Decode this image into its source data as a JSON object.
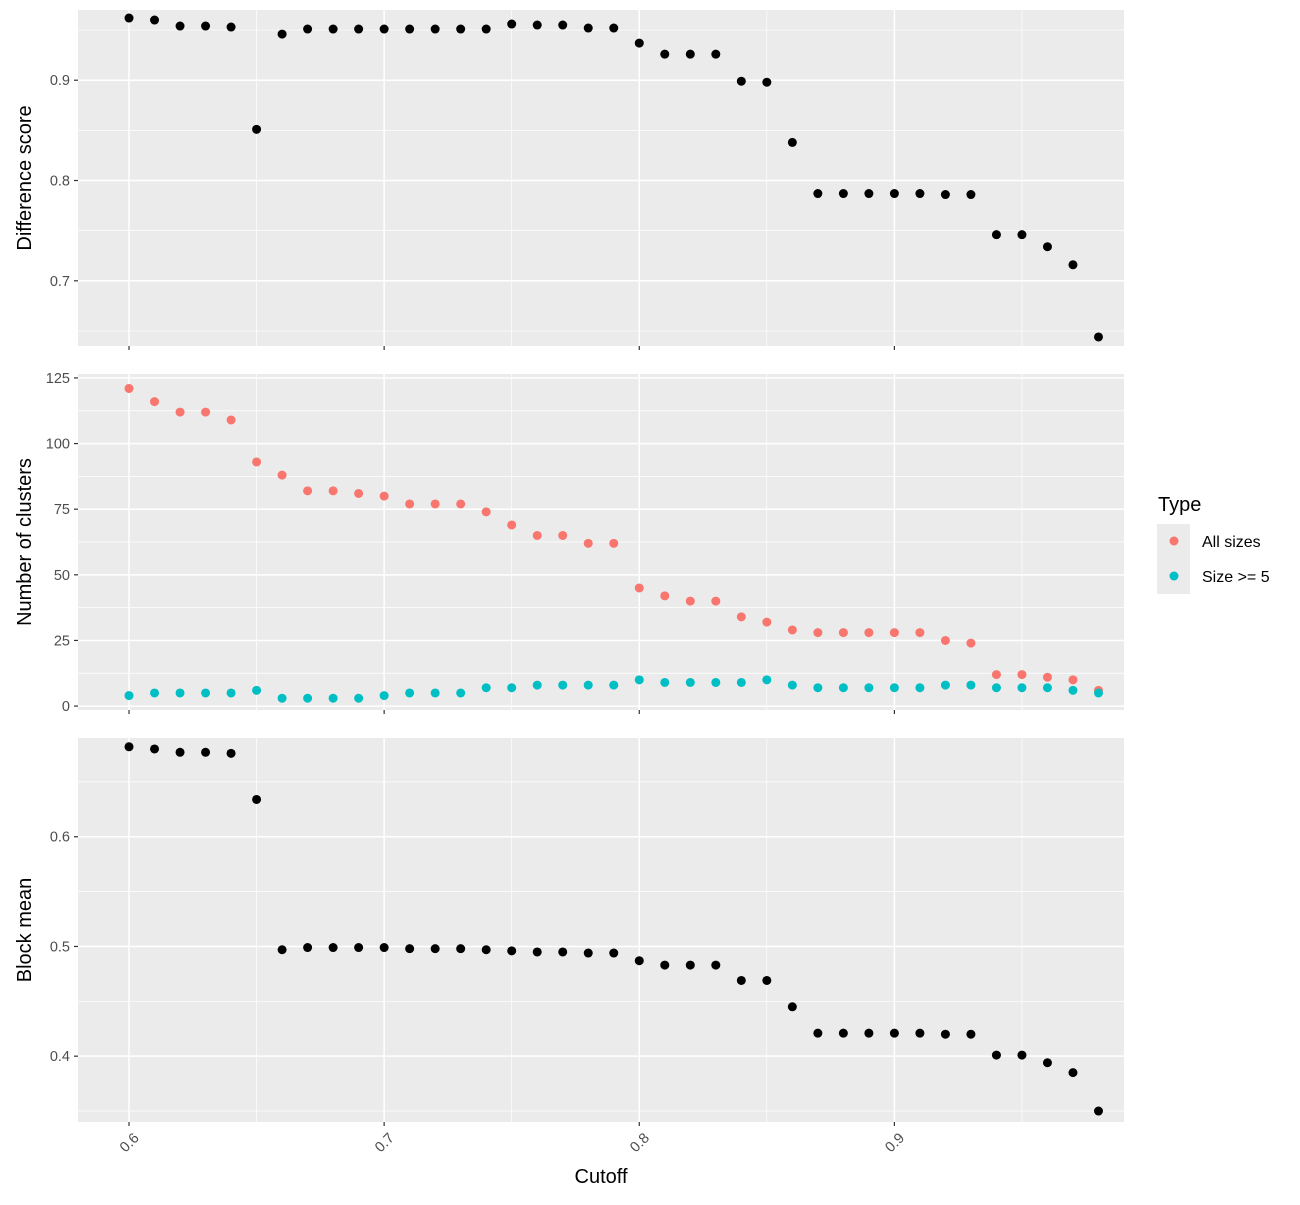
{
  "legend": {
    "title": "Type",
    "entries": [
      {
        "label": "All sizes",
        "color": "#F8766D"
      },
      {
        "label": "Size >= 5",
        "color": "#00BFC4"
      }
    ]
  },
  "chart_data": [
    {
      "type": "scatter",
      "xlabel": "",
      "ylabel": "Difference score",
      "xlim": [
        0.58,
        0.99
      ],
      "ylim": [
        0.635,
        0.97
      ],
      "x_ticks": [
        0.6,
        0.7,
        0.8,
        0.9
      ],
      "x_tick_labels": [],
      "y_ticks": [
        0.7,
        0.8,
        0.9
      ],
      "y_tick_labels": [
        "0.7",
        "0.8",
        "0.9"
      ],
      "grid": true,
      "series": [
        {
          "color": "#000000",
          "x": [
            0.6,
            0.61,
            0.62,
            0.63,
            0.64,
            0.65,
            0.66,
            0.67,
            0.68,
            0.69,
            0.7,
            0.71,
            0.72,
            0.73,
            0.74,
            0.75,
            0.76,
            0.77,
            0.78,
            0.79,
            0.8,
            0.81,
            0.82,
            0.83,
            0.84,
            0.85,
            0.86,
            0.87,
            0.88,
            0.89,
            0.9,
            0.91,
            0.92,
            0.93,
            0.94,
            0.95,
            0.96,
            0.97,
            0.98
          ],
          "y": [
            0.962,
            0.96,
            0.954,
            0.954,
            0.953,
            0.851,
            0.946,
            0.951,
            0.951,
            0.951,
            0.951,
            0.951,
            0.951,
            0.951,
            0.951,
            0.956,
            0.955,
            0.955,
            0.952,
            0.952,
            0.937,
            0.926,
            0.926,
            0.926,
            0.899,
            0.898,
            0.838,
            0.787,
            0.787,
            0.787,
            0.787,
            0.787,
            0.786,
            0.786,
            0.746,
            0.746,
            0.734,
            0.716,
            0.644
          ]
        }
      ]
    },
    {
      "type": "scatter",
      "xlabel": "",
      "ylabel": "Number of clusters",
      "xlim": [
        0.58,
        0.99
      ],
      "ylim": [
        -1.5,
        126.5
      ],
      "x_ticks": [
        0.6,
        0.7,
        0.8,
        0.9
      ],
      "x_tick_labels": [],
      "y_ticks": [
        0,
        25,
        50,
        75,
        100,
        125
      ],
      "y_tick_labels": [
        "0",
        "25",
        "50",
        "75",
        "100",
        "125"
      ],
      "grid": true,
      "legend": "right",
      "series": [
        {
          "name": "All sizes",
          "color": "#F8766D",
          "x": [
            0.6,
            0.61,
            0.62,
            0.63,
            0.64,
            0.65,
            0.66,
            0.67,
            0.68,
            0.69,
            0.7,
            0.71,
            0.72,
            0.73,
            0.74,
            0.75,
            0.76,
            0.77,
            0.78,
            0.79,
            0.8,
            0.81,
            0.82,
            0.83,
            0.84,
            0.85,
            0.86,
            0.87,
            0.88,
            0.89,
            0.9,
            0.91,
            0.92,
            0.93,
            0.94,
            0.95,
            0.96,
            0.97,
            0.98
          ],
          "y": [
            121,
            116,
            112,
            112,
            109,
            93,
            88,
            82,
            82,
            81,
            80,
            77,
            77,
            77,
            74,
            69,
            65,
            65,
            62,
            62,
            45,
            42,
            40,
            40,
            34,
            32,
            29,
            28,
            28,
            28,
            28,
            28,
            25,
            24,
            12,
            12,
            11,
            10,
            6
          ]
        },
        {
          "name": "Size >= 5",
          "color": "#00BFC4",
          "x": [
            0.6,
            0.61,
            0.62,
            0.63,
            0.64,
            0.65,
            0.66,
            0.67,
            0.68,
            0.69,
            0.7,
            0.71,
            0.72,
            0.73,
            0.74,
            0.75,
            0.76,
            0.77,
            0.78,
            0.79,
            0.8,
            0.81,
            0.82,
            0.83,
            0.84,
            0.85,
            0.86,
            0.87,
            0.88,
            0.89,
            0.9,
            0.91,
            0.92,
            0.93,
            0.94,
            0.95,
            0.96,
            0.97,
            0.98
          ],
          "y": [
            4,
            5,
            5,
            5,
            5,
            6,
            3,
            3,
            3,
            3,
            4,
            5,
            5,
            5,
            7,
            7,
            8,
            8,
            8,
            8,
            10,
            9,
            9,
            9,
            9,
            10,
            8,
            7,
            7,
            7,
            7,
            7,
            8,
            8,
            7,
            7,
            7,
            6,
            5
          ]
        }
      ]
    },
    {
      "type": "scatter",
      "xlabel": "Cutoff",
      "ylabel": "Block mean",
      "xlim": [
        0.58,
        0.99
      ],
      "ylim": [
        0.34,
        0.69
      ],
      "x_ticks": [
        0.6,
        0.7,
        0.8,
        0.9
      ],
      "x_tick_labels": [
        "0.6",
        "0.7",
        "0.8",
        "0.9"
      ],
      "y_ticks": [
        0.4,
        0.5,
        0.6
      ],
      "y_tick_labels": [
        "0.4",
        "0.5",
        "0.6"
      ],
      "grid": true,
      "series": [
        {
          "color": "#000000",
          "x": [
            0.6,
            0.61,
            0.62,
            0.63,
            0.64,
            0.65,
            0.66,
            0.67,
            0.68,
            0.69,
            0.7,
            0.71,
            0.72,
            0.73,
            0.74,
            0.75,
            0.76,
            0.77,
            0.78,
            0.79,
            0.8,
            0.81,
            0.82,
            0.83,
            0.84,
            0.85,
            0.86,
            0.87,
            0.88,
            0.89,
            0.9,
            0.91,
            0.92,
            0.93,
            0.94,
            0.95,
            0.96,
            0.97,
            0.98
          ],
          "y": [
            0.682,
            0.68,
            0.677,
            0.677,
            0.676,
            0.634,
            0.497,
            0.499,
            0.499,
            0.499,
            0.499,
            0.498,
            0.498,
            0.498,
            0.497,
            0.496,
            0.495,
            0.495,
            0.494,
            0.494,
            0.487,
            0.483,
            0.483,
            0.483,
            0.469,
            0.469,
            0.445,
            0.421,
            0.421,
            0.421,
            0.421,
            0.421,
            0.42,
            0.42,
            0.401,
            0.401,
            0.394,
            0.385,
            0.35
          ]
        }
      ]
    }
  ]
}
